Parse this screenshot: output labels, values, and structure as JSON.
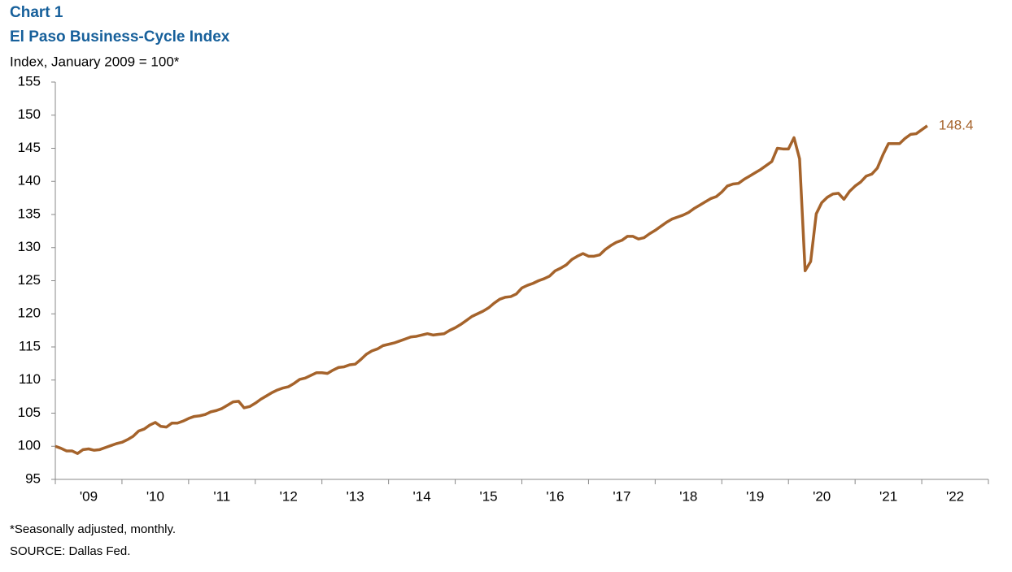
{
  "chart_data": {
    "type": "line",
    "title": "Chart 1",
    "subtitle": "El Paso Business-Cycle Index",
    "y_label": "Index, January 2009 = 100*",
    "notes": [
      "*Seasonally adjusted, monthly.",
      "SOURCE: Dallas Fed."
    ],
    "xlim": [
      2009,
      2023
    ],
    "xticks": [
      {
        "value": 2009,
        "label": "'09"
      },
      {
        "value": 2010,
        "label": "'10"
      },
      {
        "value": 2011,
        "label": "'11"
      },
      {
        "value": 2012,
        "label": "'12"
      },
      {
        "value": 2013,
        "label": "'13"
      },
      {
        "value": 2014,
        "label": "'14"
      },
      {
        "value": 2015,
        "label": "'15"
      },
      {
        "value": 2016,
        "label": "'16"
      },
      {
        "value": 2017,
        "label": "'17"
      },
      {
        "value": 2018,
        "label": "'18"
      },
      {
        "value": 2019,
        "label": "'19"
      },
      {
        "value": 2020,
        "label": "'20"
      },
      {
        "value": 2021,
        "label": "'21"
      },
      {
        "value": 2022,
        "label": "'22"
      }
    ],
    "ylim": [
      95,
      155
    ],
    "yticks": [
      95,
      100,
      105,
      110,
      115,
      120,
      125,
      130,
      135,
      140,
      145,
      150,
      155
    ],
    "grid": false,
    "x": [
      2009,
      2009.083,
      2009.167,
      2009.25,
      2009.333,
      2009.417,
      2009.5,
      2009.583,
      2009.667,
      2009.75,
      2009.833,
      2009.917,
      2010,
      2010.083,
      2010.167,
      2010.25,
      2010.333,
      2010.417,
      2010.5,
      2010.583,
      2010.667,
      2010.75,
      2010.833,
      2010.917,
      2011,
      2011.083,
      2011.167,
      2011.25,
      2011.333,
      2011.417,
      2011.5,
      2011.583,
      2011.667,
      2011.75,
      2011.833,
      2011.917,
      2012,
      2012.083,
      2012.167,
      2012.25,
      2012.333,
      2012.417,
      2012.5,
      2012.583,
      2012.667,
      2012.75,
      2012.833,
      2012.917,
      2013,
      2013.083,
      2013.167,
      2013.25,
      2013.333,
      2013.417,
      2013.5,
      2013.583,
      2013.667,
      2013.75,
      2013.833,
      2013.917,
      2014,
      2014.083,
      2014.167,
      2014.25,
      2014.333,
      2014.417,
      2014.5,
      2014.583,
      2014.667,
      2014.75,
      2014.833,
      2014.917,
      2015,
      2015.083,
      2015.167,
      2015.25,
      2015.333,
      2015.417,
      2015.5,
      2015.583,
      2015.667,
      2015.75,
      2015.833,
      2015.917,
      2016,
      2016.083,
      2016.167,
      2016.25,
      2016.333,
      2016.417,
      2016.5,
      2016.583,
      2016.667,
      2016.75,
      2016.833,
      2016.917,
      2017,
      2017.083,
      2017.167,
      2017.25,
      2017.333,
      2017.417,
      2017.5,
      2017.583,
      2017.667,
      2017.75,
      2017.833,
      2017.917,
      2018,
      2018.083,
      2018.167,
      2018.25,
      2018.333,
      2018.417,
      2018.5,
      2018.583,
      2018.667,
      2018.75,
      2018.833,
      2018.917,
      2019,
      2019.083,
      2019.167,
      2019.25,
      2019.333,
      2019.417,
      2019.5,
      2019.583,
      2019.667,
      2019.75,
      2019.833,
      2019.917,
      2020,
      2020.083,
      2020.167,
      2020.25,
      2020.333,
      2020.417,
      2020.5,
      2020.583,
      2020.667,
      2020.75,
      2020.833,
      2020.917,
      2021,
      2021.083,
      2021.167,
      2021.25,
      2021.333,
      2021.417,
      2021.5,
      2021.583,
      2021.667,
      2021.75,
      2021.833,
      2021.917,
      2022,
      2022.083
    ],
    "series": [
      {
        "color": "#a5632b",
        "values": [
          100.0,
          99.7,
          99.3,
          99.3,
          98.9,
          99.5,
          99.6,
          99.4,
          99.5,
          99.8,
          100.1,
          100.4,
          100.6,
          101.0,
          101.5,
          102.3,
          102.6,
          103.2,
          103.6,
          103.0,
          102.9,
          103.5,
          103.5,
          103.8,
          104.2,
          104.5,
          104.6,
          104.8,
          105.2,
          105.4,
          105.7,
          106.2,
          106.7,
          106.8,
          105.8,
          106.0,
          106.5,
          107.1,
          107.6,
          108.1,
          108.5,
          108.8,
          109.0,
          109.5,
          110.1,
          110.3,
          110.7,
          111.1,
          111.1,
          111.0,
          111.5,
          111.9,
          112.0,
          112.3,
          112.4,
          113.1,
          113.9,
          114.4,
          114.7,
          115.2,
          115.4,
          115.6,
          115.9,
          116.2,
          116.5,
          116.6,
          116.8,
          117.0,
          116.8,
          116.9,
          117.0,
          117.5,
          117.9,
          118.4,
          119.0,
          119.6,
          120.0,
          120.4,
          120.9,
          121.6,
          122.2,
          122.5,
          122.6,
          123.0,
          123.9,
          124.3,
          124.6,
          125.0,
          125.3,
          125.7,
          126.5,
          126.9,
          127.4,
          128.2,
          128.7,
          129.1,
          128.7,
          128.7,
          128.9,
          129.7,
          130.3,
          130.8,
          131.1,
          131.7,
          131.7,
          131.3,
          131.5,
          132.1,
          132.6,
          133.2,
          133.8,
          134.3,
          134.6,
          134.9,
          135.3,
          135.9,
          136.4,
          136.9,
          137.4,
          137.7,
          138.4,
          139.3,
          139.6,
          139.7,
          140.3,
          140.8,
          141.3,
          141.8,
          142.4,
          143.0,
          145.0,
          144.9,
          144.9,
          146.6,
          143.4,
          126.5,
          127.9,
          135.1,
          136.8,
          137.6,
          138.1,
          138.2,
          137.3,
          138.5,
          139.3,
          139.9,
          140.8,
          141.1,
          142.0,
          144.0,
          145.7,
          145.7,
          145.7,
          146.5,
          147.1,
          147.2,
          147.8,
          148.4
        ]
      }
    ]
  }
}
